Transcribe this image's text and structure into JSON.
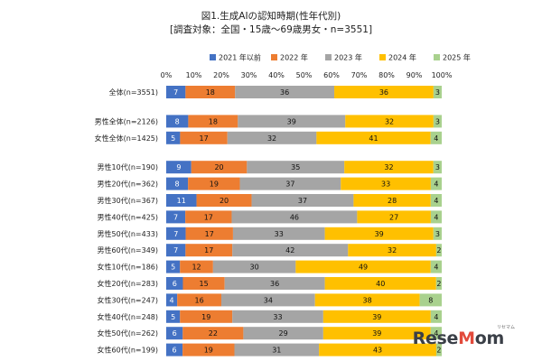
{
  "chart_data": {
    "type": "bar",
    "orientation": "horizontal",
    "stacked": "percent",
    "title": "図1.生成AIの認知時期(性年代別)",
    "subtitle": "[調査対象：全国・15歳〜69歳男女・n=3551]",
    "xlim": [
      0,
      100
    ],
    "x_ticks": [
      "0%",
      "10%",
      "20%",
      "30%",
      "40%",
      "50%",
      "60%",
      "70%",
      "80%",
      "90%",
      "100%"
    ],
    "legend_position": "top",
    "colors": [
      "#4472c4",
      "#ed7d31",
      "#a5a5a5",
      "#ffc000",
      "#a9d18e"
    ],
    "series": [
      {
        "name": "2021 年以前",
        "values": [
          7,
          8,
          5,
          9,
          8,
          11,
          7,
          7,
          7,
          5,
          6,
          4,
          5,
          6,
          6
        ]
      },
      {
        "name": "2022 年",
        "values": [
          18,
          18,
          17,
          20,
          19,
          20,
          17,
          17,
          17,
          12,
          15,
          16,
          19,
          22,
          19
        ]
      },
      {
        "name": "2023 年",
        "values": [
          36,
          39,
          32,
          35,
          37,
          37,
          46,
          33,
          42,
          30,
          36,
          34,
          33,
          29,
          31
        ]
      },
      {
        "name": "2024 年",
        "values": [
          36,
          32,
          41,
          32,
          33,
          28,
          27,
          39,
          32,
          49,
          40,
          38,
          39,
          39,
          43
        ]
      },
      {
        "name": "2025 年",
        "values": [
          3,
          3,
          4,
          3,
          4,
          4,
          4,
          3,
          2,
          4,
          2,
          8,
          4,
          4,
          2
        ]
      }
    ],
    "categories": [
      "全体(n=3551)",
      "男性全体(n=2126)",
      "女性全体(n=1425)",
      "男性10代(n=190)",
      "男性20代(n=362)",
      "男性30代(n=367)",
      "男性40代(n=425)",
      "男性50代(n=433)",
      "男性60代(n=349)",
      "女性10代(n=186)",
      "女性20代(n=283)",
      "女性30代(n=247)",
      "女性40代(n=248)",
      "女性50代(n=262)",
      "女性60代(n=199)"
    ],
    "groups": [
      [
        0
      ],
      [
        1,
        2
      ],
      [
        3,
        4,
        5,
        6,
        7,
        8,
        9,
        10,
        11,
        12,
        13,
        14
      ]
    ]
  },
  "watermark": "ReseMom"
}
